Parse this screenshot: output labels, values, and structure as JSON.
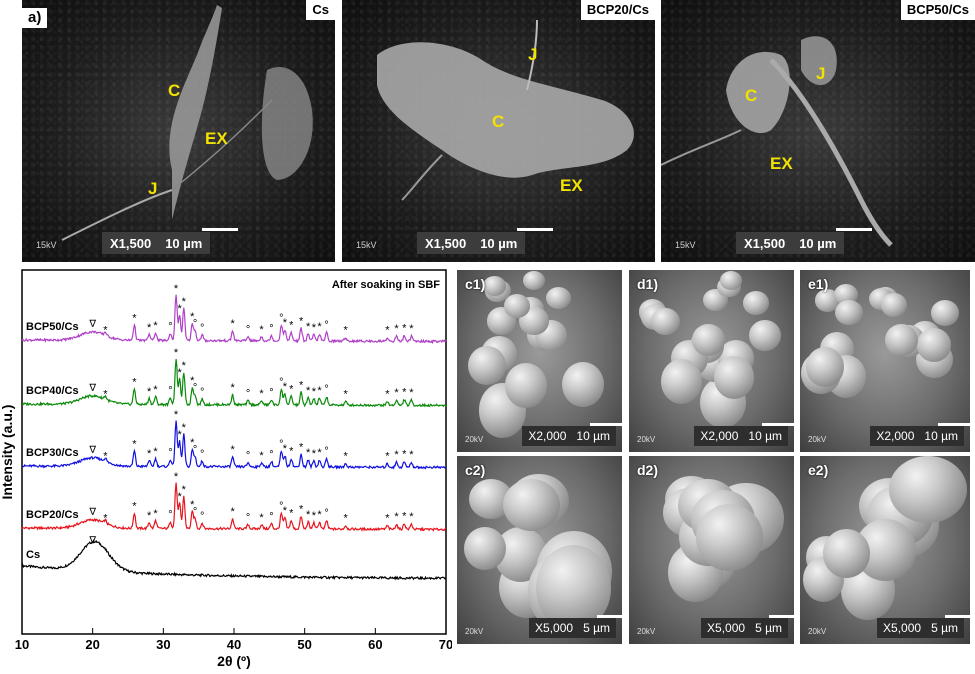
{
  "figure": {
    "panel_letter": "a)",
    "top_panels": [
      {
        "id": "cs",
        "title": "Cs",
        "mag": "X1,500",
        "scale": "10 µm",
        "kv": "15kV",
        "labels": [
          {
            "t": "C",
            "x": 168,
            "y": 97
          },
          {
            "t": "EX",
            "x": 205,
            "y": 145
          },
          {
            "t": "J",
            "x": 148,
            "y": 195
          }
        ]
      },
      {
        "id": "bcp20",
        "title": "BCP20/Cs",
        "mag": "X1,500",
        "scale": "10 µm",
        "kv": "15kV",
        "labels": [
          {
            "t": "J",
            "x": 528,
            "y": 61
          },
          {
            "t": "C",
            "x": 492,
            "y": 128
          },
          {
            "t": "EX",
            "x": 560,
            "y": 192
          }
        ]
      },
      {
        "id": "bcp50",
        "title": "BCP50/Cs",
        "mag": "X1,500",
        "scale": "10 µm",
        "kv": "15kV",
        "labels": [
          {
            "t": "C",
            "x": 745,
            "y": 102
          },
          {
            "t": "J",
            "x": 816,
            "y": 80
          },
          {
            "t": "EX",
            "x": 770,
            "y": 170
          }
        ]
      }
    ],
    "bottom_panels": [
      {
        "id": "c1",
        "label": "c1)",
        "mag": "X2,000",
        "scale": "10 µm",
        "kv": "20kV"
      },
      {
        "id": "d1",
        "label": "d1)",
        "mag": "X2,000",
        "scale": "10 µm",
        "kv": "20kV"
      },
      {
        "id": "e1",
        "label": "e1)",
        "mag": "X2,000",
        "scale": "10 µm",
        "kv": "20kV"
      },
      {
        "id": "c2",
        "label": "c2)",
        "mag": "X5,000",
        "scale": "5 µm",
        "kv": "20kV"
      },
      {
        "id": "d2",
        "label": "d2)",
        "mag": "X5,000",
        "scale": "5 µm",
        "kv": "20kV"
      },
      {
        "id": "e2",
        "label": "e2)",
        "mag": "X5,000",
        "scale": "5 µm",
        "kv": "20kV"
      }
    ]
  },
  "chart_data": {
    "type": "line",
    "title": "After soaking in SBF",
    "xlabel": "2θ (º)",
    "ylabel": "Intensity (a.u.)",
    "xlim": [
      10,
      70
    ],
    "xticks": [
      10,
      20,
      30,
      40,
      50,
      60,
      70
    ],
    "yticks": [],
    "grid": false,
    "series": [
      {
        "name": "Cs",
        "color": "#000000",
        "offset": 0
      },
      {
        "name": "BCP20/Cs",
        "color": "#e8141c",
        "offset": 1
      },
      {
        "name": "BCP30/Cs",
        "color": "#1010e0",
        "offset": 2
      },
      {
        "name": "BCP40/Cs",
        "color": "#0a8a0a",
        "offset": 3
      },
      {
        "name": "BCP50/Cs",
        "color": "#b040c8",
        "offset": 4
      }
    ],
    "peaks": [
      {
        "x": 20.0,
        "h": 0.35,
        "mark": "∇"
      },
      {
        "x": 21.8,
        "h": 0.12,
        "mark": "*"
      },
      {
        "x": 25.9,
        "h": 0.55,
        "mark": "*"
      },
      {
        "x": 28.0,
        "h": 0.22,
        "mark": "*"
      },
      {
        "x": 28.9,
        "h": 0.28,
        "mark": "*"
      },
      {
        "x": 31.0,
        "h": 0.25,
        "mark": "°"
      },
      {
        "x": 31.8,
        "h": 1.6,
        "mark": "*"
      },
      {
        "x": 32.3,
        "h": 0.9,
        "mark": "*"
      },
      {
        "x": 32.9,
        "h": 1.15,
        "mark": "*"
      },
      {
        "x": 34.1,
        "h": 0.6,
        "mark": "*"
      },
      {
        "x": 34.5,
        "h": 0.35,
        "mark": "°"
      },
      {
        "x": 35.5,
        "h": 0.2,
        "mark": "°"
      },
      {
        "x": 39.8,
        "h": 0.35,
        "mark": "*"
      },
      {
        "x": 42.0,
        "h": 0.15,
        "mark": "°"
      },
      {
        "x": 43.9,
        "h": 0.15,
        "mark": "*"
      },
      {
        "x": 45.3,
        "h": 0.18,
        "mark": "°"
      },
      {
        "x": 46.7,
        "h": 0.55,
        "mark": "°"
      },
      {
        "x": 47.2,
        "h": 0.4,
        "mark": "*"
      },
      {
        "x": 48.1,
        "h": 0.3,
        "mark": "*"
      },
      {
        "x": 49.5,
        "h": 0.45,
        "mark": "*"
      },
      {
        "x": 50.5,
        "h": 0.25,
        "mark": "*"
      },
      {
        "x": 51.3,
        "h": 0.22,
        "mark": "*"
      },
      {
        "x": 52.1,
        "h": 0.25,
        "mark": "*"
      },
      {
        "x": 53.1,
        "h": 0.3,
        "mark": "°"
      },
      {
        "x": 55.8,
        "h": 0.12,
        "mark": "*"
      },
      {
        "x": 61.7,
        "h": 0.12,
        "mark": "*"
      },
      {
        "x": 63.0,
        "h": 0.18,
        "mark": "*"
      },
      {
        "x": 64.1,
        "h": 0.2,
        "mark": "*"
      },
      {
        "x": 65.1,
        "h": 0.18,
        "mark": "*"
      }
    ]
  }
}
